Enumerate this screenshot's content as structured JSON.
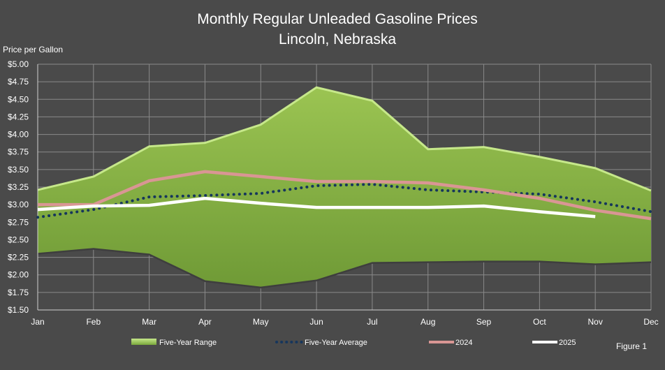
{
  "chart_data": {
    "type": "area",
    "title": "Monthly Regular Unleaded Gasoline Prices",
    "subtitle": "Lincoln, Nebraska",
    "ylabel": "Price per Gallon",
    "xlabel": "",
    "categories": [
      "Jan",
      "Feb",
      "Mar",
      "Apr",
      "May",
      "Jun",
      "Jul",
      "Aug",
      "Sep",
      "Oct",
      "Nov",
      "Dec"
    ],
    "ylim": [
      1.5,
      5.0
    ],
    "ytick_step": 0.25,
    "ytick_labels": [
      "$1.50",
      "$1.75",
      "$2.00",
      "$2.25",
      "$2.50",
      "$2.75",
      "$3.00",
      "$3.25",
      "$3.50",
      "$3.75",
      "$4.00",
      "$4.25",
      "$4.50",
      "$4.75",
      "$5.00"
    ],
    "grid": true,
    "legend_position": "bottom",
    "range": {
      "name": "Five-Year Range",
      "high": [
        3.21,
        3.4,
        3.83,
        3.88,
        4.14,
        4.67,
        4.48,
        3.79,
        3.82,
        3.68,
        3.52,
        3.2
      ],
      "low": [
        2.3,
        2.37,
        2.29,
        1.91,
        1.82,
        1.92,
        2.17,
        2.18,
        2.19,
        2.19,
        2.15,
        2.18
      ]
    },
    "series": [
      {
        "name": "Five-Year Average",
        "style": "dotted",
        "color": "#16365c",
        "values": [
          2.82,
          2.93,
          3.11,
          3.13,
          3.16,
          3.27,
          3.29,
          3.21,
          3.18,
          3.15,
          3.04,
          2.9
        ]
      },
      {
        "name": "2024",
        "style": "solid",
        "color": "#d99694",
        "values": [
          3.0,
          3.0,
          3.34,
          3.47,
          3.4,
          3.33,
          3.33,
          3.31,
          3.21,
          3.09,
          2.92,
          2.8
        ]
      },
      {
        "name": "2025",
        "style": "solid",
        "color": "#ffffff",
        "values": [
          2.93,
          2.98,
          2.99,
          3.09,
          3.02,
          2.96,
          2.96,
          2.96,
          2.98,
          2.9,
          2.83,
          null
        ]
      }
    ],
    "footnote": "Figure 1"
  },
  "colors": {
    "background": "#4a4a4a",
    "range_fill_light": "#9bc452",
    "range_fill_dark": "#6f9a36",
    "range_edge": "#c6e88a",
    "grid": "#8a8a8a"
  }
}
